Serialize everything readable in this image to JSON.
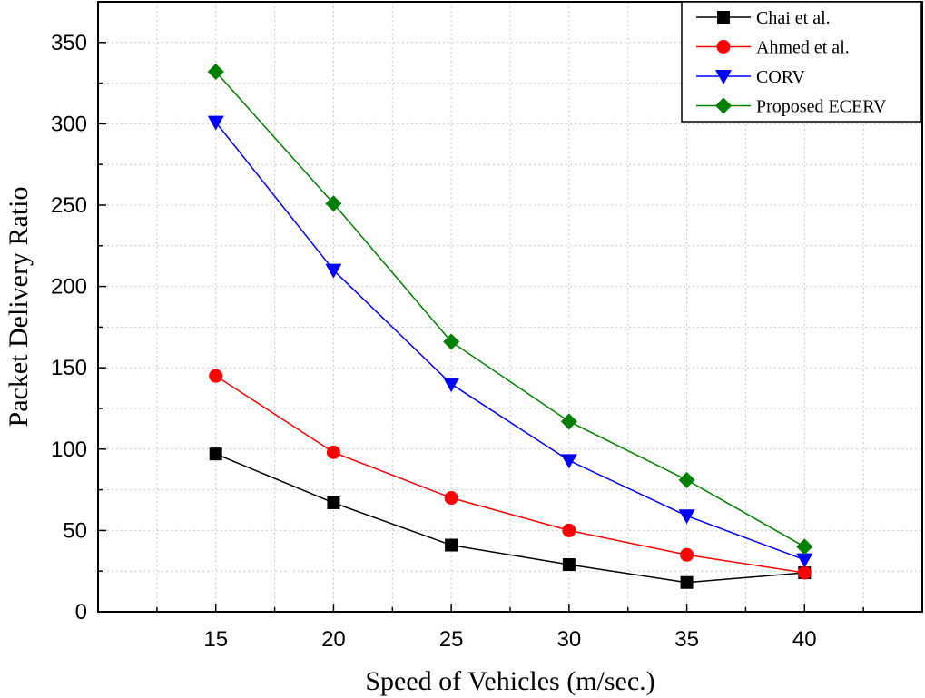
{
  "chart_data": {
    "type": "line",
    "x": [
      15,
      20,
      25,
      30,
      35,
      40
    ],
    "xlabel": "Speed of Vehicles (m/sec.)",
    "ylabel": "Packet Delivery Ratio",
    "xlim": [
      10,
      45
    ],
    "ylim": [
      0,
      375
    ],
    "xticks": [
      15,
      20,
      25,
      30,
      35,
      40
    ],
    "yticks": [
      0,
      50,
      100,
      150,
      200,
      250,
      300,
      350
    ],
    "grid": true,
    "legend_position": "top-right",
    "series": [
      {
        "name": "Chai et al.",
        "color": "#000000",
        "marker": "square",
        "values": [
          97,
          67,
          41,
          29,
          18,
          24
        ]
      },
      {
        "name": "Ahmed et al.",
        "color": "#ff0000",
        "marker": "circle",
        "values": [
          145,
          98,
          70,
          50,
          35,
          24
        ]
      },
      {
        "name": "CORV",
        "color": "#0000ff",
        "marker": "triangle-down",
        "values": [
          301,
          210,
          140,
          93,
          59,
          32
        ]
      },
      {
        "name": "Proposed ECERV",
        "color": "#008000",
        "marker": "diamond",
        "values": [
          332,
          251,
          166,
          117,
          81,
          40
        ]
      }
    ]
  }
}
